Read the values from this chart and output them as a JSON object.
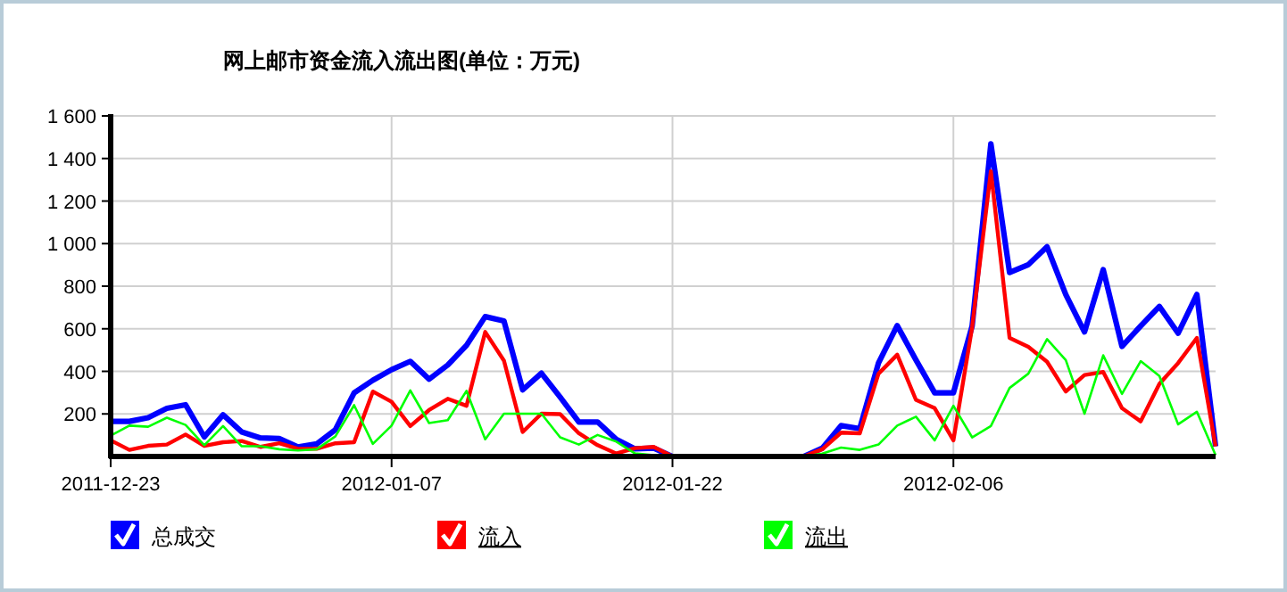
{
  "chart_data": {
    "type": "line",
    "title": "网上邮市资金流入流出图(单位：万元)",
    "x": [
      "2011-12-23",
      "2011-12-24",
      "2011-12-25",
      "2011-12-26",
      "2011-12-27",
      "2011-12-28",
      "2011-12-29",
      "2011-12-30",
      "2011-12-31",
      "2012-01-01",
      "2012-01-02",
      "2012-01-03",
      "2012-01-04",
      "2012-01-05",
      "2012-01-06",
      "2012-01-07",
      "2012-01-08",
      "2012-01-09",
      "2012-01-10",
      "2012-01-11",
      "2012-01-12",
      "2012-01-13",
      "2012-01-14",
      "2012-01-15",
      "2012-01-16",
      "2012-01-17",
      "2012-01-18",
      "2012-01-19",
      "2012-01-20",
      "2012-01-21",
      "2012-01-22",
      "2012-01-23",
      "2012-01-24",
      "2012-01-25",
      "2012-01-26",
      "2012-01-27",
      "2012-01-28",
      "2012-01-29",
      "2012-01-30",
      "2012-01-31",
      "2012-02-01",
      "2012-02-02",
      "2012-02-03",
      "2012-02-04",
      "2012-02-05",
      "2012-02-06",
      "2012-02-07",
      "2012-02-08",
      "2012-02-09",
      "2012-02-10",
      "2012-02-11",
      "2012-02-12",
      "2012-02-13",
      "2012-02-14",
      "2012-02-15",
      "2012-02-16",
      "2012-02-17",
      "2012-02-18",
      "2012-02-19",
      "2012-02-20"
    ],
    "series": [
      {
        "name": "总成交",
        "color": "#0000ff",
        "values": [
          165,
          165,
          182,
          226,
          243,
          92,
          196,
          115,
          87,
          84,
          45,
          59,
          126,
          299,
          358,
          408,
          447,
          363,
          430,
          522,
          657,
          637,
          313,
          391,
          279,
          162,
          162,
          81,
          36,
          39,
          0,
          0,
          0,
          0,
          0,
          0,
          0,
          0,
          39,
          145,
          131,
          439,
          615,
          453,
          299,
          299,
          613,
          1469,
          864,
          901,
          985,
          761,
          585,
          878,
          517,
          613,
          705,
          579,
          761,
          48
        ]
      },
      {
        "name": "流入",
        "color": "#ff0000",
        "values": [
          76,
          31,
          50,
          56,
          103,
          50,
          67,
          73,
          45,
          62,
          36,
          36,
          62,
          67,
          305,
          257,
          143,
          218,
          271,
          238,
          585,
          450,
          115,
          201,
          199,
          109,
          53,
          14,
          39,
          45,
          0,
          0,
          0,
          0,
          0,
          0,
          0,
          0,
          34,
          112,
          109,
          389,
          478,
          266,
          227,
          76,
          607,
          1340,
          557,
          515,
          445,
          305,
          383,
          397,
          227,
          165,
          341,
          439,
          557,
          48
        ]
      },
      {
        "name": "流出",
        "color": "#00ff00",
        "values": [
          98,
          145,
          140,
          182,
          148,
          53,
          143,
          48,
          48,
          34,
          28,
          34,
          95,
          241,
          59,
          145,
          310,
          157,
          171,
          308,
          81,
          201,
          201,
          201,
          90,
          56,
          101,
          70,
          14,
          6,
          0,
          0,
          0,
          0,
          0,
          0,
          0,
          0,
          14,
          42,
          31,
          56,
          145,
          187,
          76,
          238,
          90,
          143,
          322,
          389,
          551,
          453,
          201,
          475,
          294,
          448,
          378,
          151,
          210,
          6
        ]
      }
    ],
    "xlim": [
      "2011-12-23",
      "2012-02-20"
    ],
    "xticks": [
      {
        "value": "2011-12-23",
        "label": "2011-12-23"
      },
      {
        "value": "2012-01-07",
        "label": "2012-01-07"
      },
      {
        "value": "2012-01-22",
        "label": "2012-01-22"
      },
      {
        "value": "2012-02-06",
        "label": "2012-02-06"
      }
    ],
    "ylim": [
      0,
      1600
    ],
    "yticks": [
      200,
      400,
      600,
      800,
      {
        "value": 1000,
        "label": "1 000"
      },
      {
        "value": 1200,
        "label": "1 200"
      },
      {
        "value": 1400,
        "label": "1 400"
      },
      {
        "value": 1600,
        "label": "1 600"
      }
    ],
    "grid": true,
    "legend": "bottom",
    "marker": "none",
    "line_style": "solid"
  }
}
